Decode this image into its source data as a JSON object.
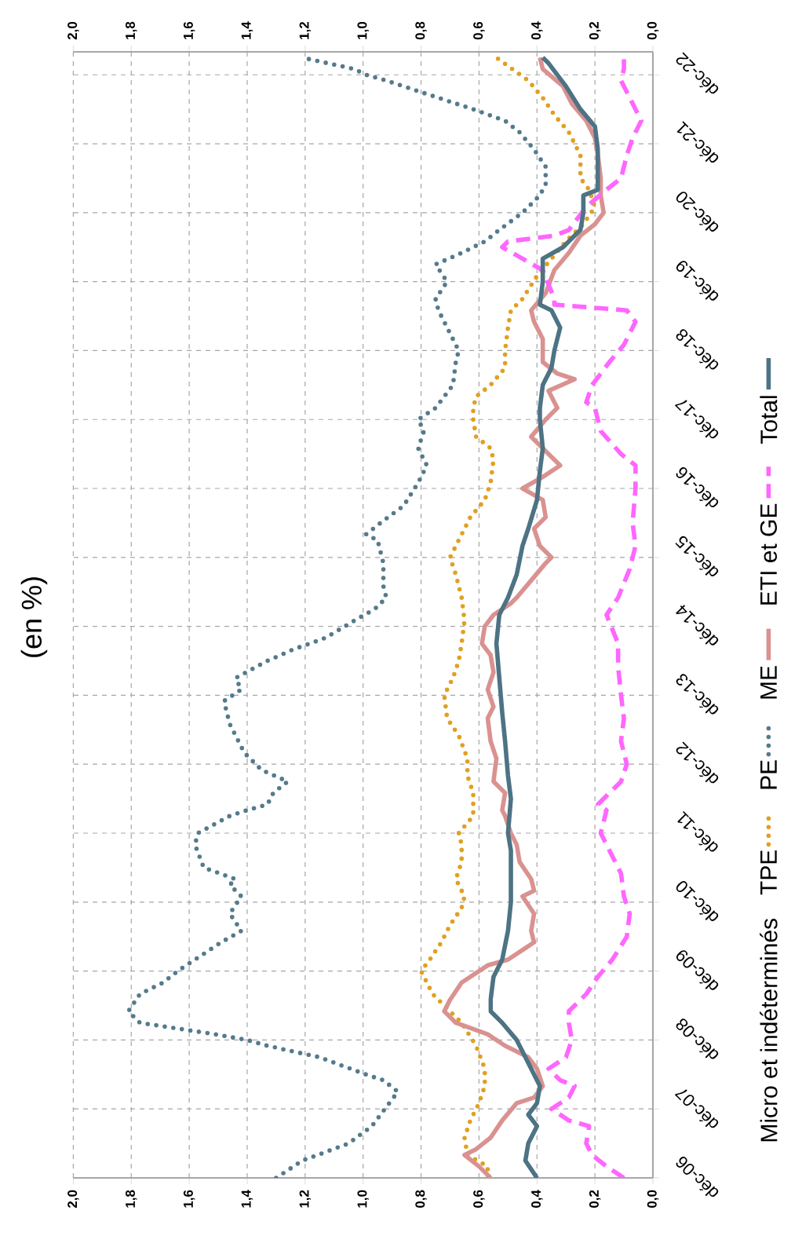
{
  "chart_data": {
    "type": "line",
    "orientation": "horizontal",
    "title": "(en %)",
    "legend_title": "Micro et indéterminés",
    "legend": "right",
    "grid": true,
    "ylim": [
      "2006-12",
      "2023-04"
    ],
    "yticks": [
      {
        "value": "2006-12",
        "label": "déc-06"
      },
      {
        "value": "2007-12",
        "label": "déc-07"
      },
      {
        "value": "2008-12",
        "label": "déc-08"
      },
      {
        "value": "2009-12",
        "label": "déc-09"
      },
      {
        "value": "2010-12",
        "label": "déc-10"
      },
      {
        "value": "2011-12",
        "label": "déc-11"
      },
      {
        "value": "2012-12",
        "label": "déc-12"
      },
      {
        "value": "2013-12",
        "label": "déc-13"
      },
      {
        "value": "2014-12",
        "label": "déc-14"
      },
      {
        "value": "2015-12",
        "label": "déc-15"
      },
      {
        "value": "2016-12",
        "label": "déc-16"
      },
      {
        "value": "2017-12",
        "label": "déc-17"
      },
      {
        "value": "2018-12",
        "label": "déc-18"
      },
      {
        "value": "2019-12",
        "label": "déc-19"
      },
      {
        "value": "2020-12",
        "label": "déc-20"
      },
      {
        "value": "2021-12",
        "label": "déc-21"
      },
      {
        "value": "2022-12",
        "label": "déc-22"
      }
    ],
    "xlim": [
      2,
      0
    ],
    "xticks": [
      {
        "value": 0,
        "label": "0,0"
      },
      {
        "value": 0.2,
        "label": "0,2"
      },
      {
        "value": 0.4,
        "label": "0,4"
      },
      {
        "value": 0.6,
        "label": "0,6"
      },
      {
        "value": 0.8,
        "label": "0,8"
      },
      {
        "value": 1.0,
        "label": "1,0"
      },
      {
        "value": 1.2,
        "label": "1,2"
      },
      {
        "value": 1.4,
        "label": "1,4"
      },
      {
        "value": 1.6,
        "label": "1,6"
      },
      {
        "value": 1.8,
        "label": "1,8"
      },
      {
        "value": 2.0,
        "label": "2,0"
      }
    ],
    "x2lim": [
      2,
      0
    ],
    "x2ticks": [
      {
        "value": 0,
        "label": "0,0"
      },
      {
        "value": 0.2,
        "label": "0,2"
      },
      {
        "value": 0.4,
        "label": "0,4"
      },
      {
        "value": 0.6,
        "label": "0,6"
      },
      {
        "value": 0.8,
        "label": "0,8"
      },
      {
        "value": 1.0,
        "label": "1,0"
      },
      {
        "value": 1.2,
        "label": "1,2"
      },
      {
        "value": 1.4,
        "label": "1,4"
      },
      {
        "value": 1.6,
        "label": "1,6"
      },
      {
        "value": 1.8,
        "label": "1,8"
      },
      {
        "value": 2.0,
        "label": "2,0"
      }
    ],
    "series": [
      {
        "name": "TPE",
        "color": "#e0a020",
        "line_style": "dotted",
        "x": [
          "2006-12",
          "2007-02",
          "2007-04",
          "2007-07",
          "2007-10",
          "2008-01",
          "2008-04",
          "2008-07",
          "2008-11",
          "2009-03",
          "2009-05",
          "2009-08",
          "2009-12",
          "2010-02",
          "2010-05",
          "2010-08",
          "2010-11",
          "2011-01",
          "2011-04",
          "2011-07",
          "2011-10",
          "2011-12",
          "2012-03",
          "2012-07",
          "2012-10",
          "2013-01",
          "2013-05",
          "2013-08",
          "2013-12",
          "2014-03",
          "2014-06",
          "2014-09",
          "2015-01",
          "2015-05",
          "2015-09",
          "2015-12",
          "2016-04",
          "2016-07",
          "2016-10",
          "2017-01",
          "2017-05",
          "2017-07",
          "2017-09",
          "2017-12",
          "2018-02",
          "2018-04",
          "2018-06",
          "2018-09",
          "2018-12",
          "2019-04",
          "2019-07",
          "2019-09",
          "2020-01",
          "2020-04",
          "2020-07",
          "2020-10",
          "2021-01",
          "2021-04",
          "2021-06",
          "2021-10",
          "2022-02",
          "2022-05",
          "2022-08",
          "2022-11",
          "2023-03"
        ],
        "values": [
          0.57,
          0.57,
          0.64,
          0.65,
          0.63,
          0.6,
          0.58,
          0.58,
          0.61,
          0.66,
          0.7,
          0.76,
          0.8,
          0.77,
          0.73,
          0.7,
          0.66,
          0.65,
          0.68,
          0.66,
          0.66,
          0.67,
          0.62,
          0.62,
          0.64,
          0.64,
          0.67,
          0.71,
          0.72,
          0.69,
          0.67,
          0.66,
          0.65,
          0.66,
          0.68,
          0.7,
          0.66,
          0.63,
          0.58,
          0.56,
          0.55,
          0.56,
          0.61,
          0.62,
          0.62,
          0.61,
          0.56,
          0.51,
          0.51,
          0.5,
          0.49,
          0.45,
          0.4,
          0.35,
          0.3,
          0.24,
          0.2,
          0.22,
          0.25,
          0.25,
          0.29,
          0.34,
          0.38,
          0.43,
          0.54
        ]
      },
      {
        "name": "PE",
        "color": "#557a8c",
        "line_style": "dotted",
        "x": [
          "2006-12",
          "2007-03",
          "2007-06",
          "2007-09",
          "2008-03",
          "2008-05",
          "2008-06",
          "2008-09",
          "2008-11",
          "2008-12",
          "2009-01",
          "2009-02",
          "2009-03",
          "2009-05",
          "2009-08",
          "2009-10",
          "2009-12",
          "2010-03",
          "2010-05",
          "2010-07",
          "2010-10",
          "2011-01",
          "2011-03",
          "2011-04",
          "2011-06",
          "2011-10",
          "2011-12",
          "2012-03",
          "2012-04",
          "2012-05",
          "2012-07",
          "2012-09",
          "2012-11",
          "2013-02",
          "2013-07",
          "2013-11",
          "2014-01",
          "2014-03",
          "2014-06",
          "2014-08",
          "2014-10",
          "2015-01",
          "2015-03",
          "2015-05",
          "2015-07",
          "2015-11",
          "2016-03",
          "2016-04",
          "2016-06",
          "2016-09",
          "2017-01",
          "2017-04",
          "2017-07",
          "2017-10",
          "2017-12",
          "2018-02",
          "2018-06",
          "2018-10",
          "2018-12",
          "2019-03",
          "2019-07",
          "2019-09",
          "2019-12",
          "2020-03",
          "2020-05",
          "2020-07",
          "2020-09",
          "2020-12",
          "2021-03",
          "2021-05",
          "2021-08",
          "2021-11",
          "2022-02",
          "2022-04",
          "2022-06",
          "2022-09",
          "2022-11",
          "2022-12",
          "2023-01",
          "2023-03"
        ],
        "values": [
          1.3,
          1.21,
          1.05,
          0.97,
          0.88,
          0.93,
          0.99,
          1.15,
          1.33,
          1.4,
          1.51,
          1.64,
          1.77,
          1.81,
          1.77,
          1.69,
          1.64,
          1.55,
          1.49,
          1.42,
          1.46,
          1.42,
          1.46,
          1.44,
          1.55,
          1.58,
          1.57,
          1.46,
          1.4,
          1.33,
          1.31,
          1.26,
          1.35,
          1.41,
          1.46,
          1.48,
          1.42,
          1.44,
          1.33,
          1.24,
          1.13,
          1.03,
          0.96,
          0.92,
          0.93,
          0.93,
          0.95,
          0.99,
          0.94,
          0.86,
          0.81,
          0.78,
          0.81,
          0.79,
          0.81,
          0.75,
          0.69,
          0.68,
          0.67,
          0.7,
          0.74,
          0.75,
          0.71,
          0.75,
          0.66,
          0.58,
          0.53,
          0.45,
          0.39,
          0.37,
          0.37,
          0.41,
          0.46,
          0.51,
          0.62,
          0.8,
          0.92,
          0.99,
          1.03,
          1.21
        ]
      },
      {
        "name": "ME",
        "color": "#d99290",
        "line_style": "solid",
        "x": [
          "2006-12",
          "2007-02",
          "2007-04",
          "2007-05",
          "2007-07",
          "2007-10",
          "2008-01",
          "2008-02",
          "2008-04",
          "2008-07",
          "2008-09",
          "2008-11",
          "2009-01",
          "2009-03",
          "2009-05",
          "2009-07",
          "2009-10",
          "2010-01",
          "2010-02",
          "2010-04",
          "2010-05",
          "2010-07",
          "2010-10",
          "2011-01",
          "2011-02",
          "2011-04",
          "2011-07",
          "2011-10",
          "2011-12",
          "2012-03",
          "2012-04",
          "2012-07",
          "2012-09",
          "2013-01",
          "2013-04",
          "2013-08",
          "2013-10",
          "2014-01",
          "2014-04",
          "2014-07",
          "2014-09",
          "2014-12",
          "2015-02",
          "2015-04",
          "2015-05",
          "2015-08",
          "2015-11",
          "2015-12",
          "2016-02",
          "2016-05",
          "2016-07",
          "2016-10",
          "2016-12",
          "2017-02",
          "2017-04",
          "2017-07",
          "2017-09",
          "2017-12",
          "2018-02",
          "2018-05",
          "2018-07",
          "2018-08",
          "2018-10",
          "2019-02",
          "2019-05",
          "2019-07",
          "2019-10",
          "2020-02",
          "2020-05",
          "2020-08",
          "2020-10",
          "2020-12",
          "2021-03",
          "2021-06",
          "2021-10",
          "2022-01",
          "2022-04",
          "2022-07",
          "2022-10",
          "2023-01",
          "2023-03"
        ],
        "values": [
          0.56,
          0.6,
          0.65,
          0.61,
          0.56,
          0.52,
          0.47,
          0.41,
          0.38,
          0.4,
          0.43,
          0.51,
          0.57,
          0.68,
          0.72,
          0.7,
          0.66,
          0.57,
          0.5,
          0.44,
          0.41,
          0.42,
          0.41,
          0.45,
          0.41,
          0.42,
          0.46,
          0.47,
          0.49,
          0.51,
          0.52,
          0.51,
          0.55,
          0.54,
          0.56,
          0.57,
          0.55,
          0.57,
          0.55,
          0.56,
          0.59,
          0.58,
          0.55,
          0.49,
          0.47,
          0.42,
          0.37,
          0.35,
          0.39,
          0.41,
          0.37,
          0.38,
          0.45,
          0.38,
          0.32,
          0.38,
          0.42,
          0.37,
          0.33,
          0.36,
          0.27,
          0.33,
          0.38,
          0.38,
          0.41,
          0.42,
          0.37,
          0.34,
          0.29,
          0.25,
          0.2,
          0.17,
          0.18,
          0.18,
          0.19,
          0.2,
          0.23,
          0.28,
          0.31,
          0.38,
          0.39
        ]
      },
      {
        "name": "ETI et GE",
        "color": "#ff66ff",
        "line_style": "dashed",
        "x": [
          "2006-12",
          "2007-02",
          "2007-04",
          "2007-06",
          "2007-09",
          "2007-10",
          "2007-12",
          "2008-02",
          "2008-04",
          "2008-05",
          "2008-07",
          "2008-09",
          "2008-12",
          "2009-03",
          "2009-05",
          "2009-08",
          "2009-11",
          "2010-02",
          "2010-06",
          "2010-10",
          "2011-01",
          "2011-05",
          "2011-09",
          "2011-12",
          "2012-04",
          "2012-05",
          "2012-09",
          "2012-12",
          "2013-04",
          "2013-08",
          "2013-12",
          "2014-05",
          "2014-09",
          "2015-02",
          "2015-05",
          "2015-10",
          "2016-02",
          "2016-06",
          "2016-12",
          "2017-04",
          "2017-06",
          "2017-10",
          "2018-02",
          "2018-03",
          "2018-06",
          "2018-10",
          "2019-01",
          "2019-05",
          "2019-07",
          "2019-08",
          "2019-09",
          "2020-02",
          "2020-04",
          "2020-06",
          "2020-07",
          "2020-08",
          "2020-09",
          "2021-01",
          "2021-04",
          "2021-06",
          "2021-10",
          "2022-01",
          "2022-04",
          "2022-07",
          "2022-11",
          "2023-01",
          "2023-03"
        ],
        "values": [
          0.1,
          0.16,
          0.21,
          0.23,
          0.22,
          0.29,
          0.35,
          0.29,
          0.27,
          0.32,
          0.36,
          0.3,
          0.28,
          0.29,
          0.29,
          0.23,
          0.19,
          0.14,
          0.09,
          0.08,
          0.1,
          0.11,
          0.15,
          0.18,
          0.16,
          0.19,
          0.11,
          0.09,
          0.11,
          0.1,
          0.11,
          0.12,
          0.12,
          0.16,
          0.12,
          0.08,
          0.06,
          0.07,
          0.06,
          0.06,
          0.11,
          0.18,
          0.2,
          0.23,
          0.21,
          0.15,
          0.1,
          0.06,
          0.09,
          0.34,
          0.34,
          0.38,
          0.45,
          0.52,
          0.5,
          0.34,
          0.29,
          0.23,
          0.16,
          0.11,
          0.09,
          0.07,
          0.04,
          0.07,
          0.11,
          0.1,
          0.1
        ]
      },
      {
        "name": "Total",
        "color": "#4d7384",
        "line_style": "solid",
        "x": [
          "2006-12",
          "2007-03",
          "2007-06",
          "2007-09",
          "2007-11",
          "2008-01",
          "2008-04",
          "2008-06",
          "2008-09",
          "2008-12",
          "2009-03",
          "2009-05",
          "2009-07",
          "2009-11",
          "2010-02",
          "2010-07",
          "2010-12",
          "2011-04",
          "2011-09",
          "2011-12",
          "2012-06",
          "2012-10",
          "2013-04",
          "2013-09",
          "2014-03",
          "2014-09",
          "2015-02",
          "2015-05",
          "2015-09",
          "2016-02",
          "2016-05",
          "2016-10",
          "2017-03",
          "2017-07",
          "2017-12",
          "2018-02",
          "2018-06",
          "2018-09",
          "2018-12",
          "2019-04",
          "2019-07",
          "2019-08",
          "2019-12",
          "2020-04",
          "2020-06",
          "2020-08",
          "2020-09",
          "2020-12",
          "2021-03",
          "2021-04",
          "2021-07",
          "2021-11",
          "2022-03",
          "2022-06",
          "2022-10",
          "2023-02",
          "2023-03"
        ],
        "values": [
          0.4,
          0.44,
          0.43,
          0.4,
          0.43,
          0.4,
          0.39,
          0.41,
          0.44,
          0.47,
          0.52,
          0.56,
          0.56,
          0.55,
          0.52,
          0.5,
          0.49,
          0.49,
          0.49,
          0.5,
          0.49,
          0.5,
          0.51,
          0.52,
          0.53,
          0.54,
          0.53,
          0.5,
          0.47,
          0.45,
          0.43,
          0.4,
          0.39,
          0.38,
          0.39,
          0.39,
          0.38,
          0.35,
          0.34,
          0.32,
          0.35,
          0.39,
          0.38,
          0.38,
          0.31,
          0.27,
          0.25,
          0.24,
          0.24,
          0.19,
          0.19,
          0.19,
          0.2,
          0.25,
          0.3,
          0.36,
          0.38
        ]
      }
    ]
  }
}
